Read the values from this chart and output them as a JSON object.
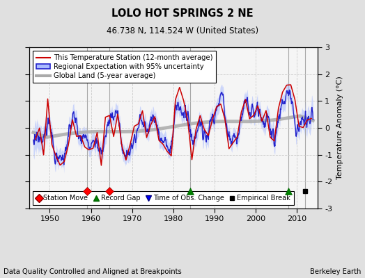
{
  "title": "LOLO HOT SPRINGS 2 NE",
  "subtitle": "46.738 N, 114.524 W (United States)",
  "xlabel_bottom": "Data Quality Controlled and Aligned at Breakpoints",
  "xlabel_right": "Berkeley Earth",
  "ylabel": "Temperature Anomaly (°C)",
  "xlim": [
    1945,
    2015
  ],
  "ylim": [
    -3,
    3
  ],
  "yticks": [
    -3,
    -2,
    -1,
    0,
    1,
    2,
    3
  ],
  "xticks": [
    1950,
    1960,
    1970,
    1980,
    1990,
    2000,
    2010
  ],
  "bg_color": "#e0e0e0",
  "plot_bg_color": "#f5f5f5",
  "station_moves": [
    1959.0,
    1964.5
  ],
  "record_gaps": [
    1984.0,
    2008.0
  ],
  "obs_changes": [],
  "empirical_breaks": [
    2012.0
  ],
  "vert_line_color": "#888888",
  "grid_color": "#cccccc",
  "uncertainty_color": "#aabbff",
  "regional_color": "#2222cc",
  "station_color": "#cc0000",
  "global_color": "#aaaaaa"
}
